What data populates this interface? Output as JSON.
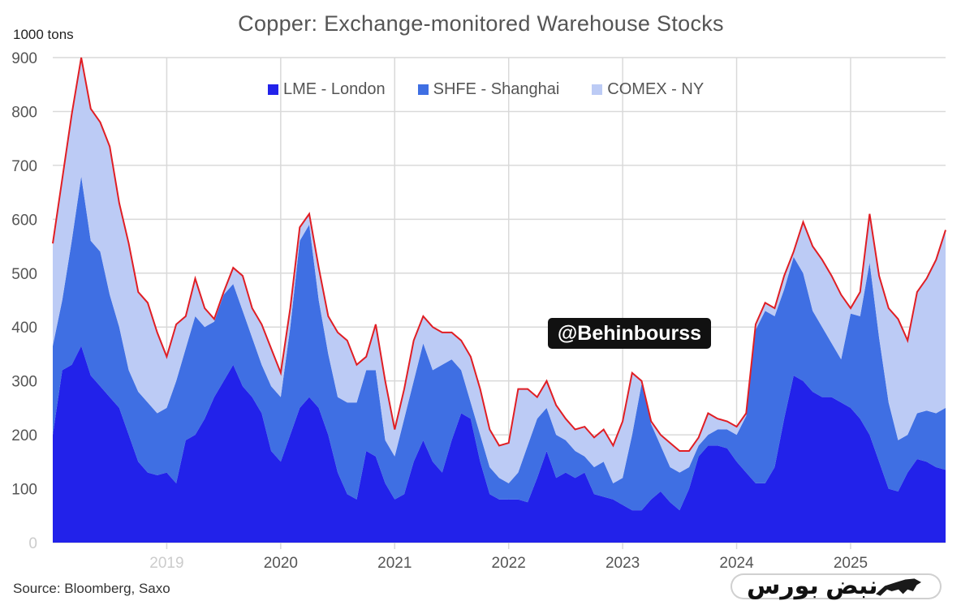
{
  "chart_data": {
    "type": "area",
    "stacked": true,
    "title": "Copper: Exchange-monitored Warehouse Stocks",
    "ylabel": "1000 tons",
    "xlabel": "",
    "ylim": [
      0,
      900
    ],
    "yticks": [
      "0",
      "100",
      "200",
      "300",
      "400",
      "500",
      "600",
      "700",
      "800",
      "900"
    ],
    "xticks": [
      "2019",
      "2020",
      "2021",
      "2022",
      "2023",
      "2024",
      "2025"
    ],
    "x_start": "2018-01",
    "x_step": "monthly",
    "grid": true,
    "legend_position": "top-center",
    "series": [
      {
        "name": "LME - London",
        "color": "#2222ea",
        "values": [
          200,
          320,
          330,
          365,
          310,
          290,
          270,
          250,
          200,
          150,
          130,
          125,
          130,
          110,
          190,
          200,
          230,
          270,
          300,
          330,
          290,
          270,
          240,
          170,
          150,
          200,
          250,
          270,
          250,
          200,
          130,
          90,
          80,
          170,
          160,
          110,
          80,
          90,
          150,
          190,
          150,
          130,
          190,
          240,
          230,
          150,
          90,
          80,
          80,
          80,
          75,
          120,
          170,
          120,
          130,
          120,
          130,
          90,
          85,
          80,
          70,
          60,
          60,
          80,
          95,
          75,
          60,
          100,
          160,
          180,
          180,
          175,
          150,
          130,
          110,
          110,
          140,
          230,
          310,
          300,
          280,
          270,
          270,
          260,
          250,
          230,
          200,
          150,
          100,
          95,
          130,
          155,
          150,
          140,
          135
        ]
      },
      {
        "name": "SHFE - Shanghai",
        "color": "#3f6fe3",
        "values": [
          165,
          130,
          230,
          315,
          250,
          250,
          190,
          150,
          120,
          130,
          130,
          115,
          120,
          190,
          170,
          220,
          170,
          140,
          160,
          150,
          140,
          110,
          90,
          120,
          120,
          200,
          310,
          320,
          200,
          150,
          140,
          170,
          180,
          150,
          160,
          80,
          80,
          140,
          150,
          180,
          170,
          200,
          150,
          80,
          30,
          50,
          50,
          40,
          30,
          50,
          105,
          110,
          80,
          80,
          60,
          50,
          30,
          50,
          65,
          30,
          50,
          140,
          235,
          140,
          85,
          65,
          70,
          40,
          20,
          20,
          30,
          35,
          50,
          105,
          285,
          320,
          280,
          240,
          220,
          200,
          150,
          130,
          100,
          80,
          175,
          190,
          320,
          230,
          160,
          95,
          70,
          85,
          95,
          100,
          115
        ]
      },
      {
        "name": "COMEX - NY",
        "color": "#bccbf5",
        "values": [
          190,
          225,
          235,
          220,
          245,
          240,
          275,
          230,
          235,
          185,
          185,
          150,
          95,
          105,
          60,
          70,
          35,
          5,
          5,
          30,
          65,
          55,
          75,
          70,
          45,
          35,
          25,
          20,
          60,
          70,
          120,
          115,
          70,
          25,
          85,
          110,
          50,
          55,
          75,
          50,
          80,
          60,
          50,
          55,
          85,
          85,
          70,
          60,
          75,
          155,
          105,
          40,
          50,
          55,
          40,
          40,
          55,
          55,
          60,
          70,
          105,
          115,
          5,
          5,
          20,
          45,
          40,
          30,
          15,
          40,
          20,
          15,
          15,
          5,
          10,
          15,
          15,
          25,
          10,
          95,
          120,
          125,
          125,
          120,
          10,
          45,
          90,
          115,
          175,
          225,
          175,
          225,
          245,
          285,
          330
        ]
      }
    ],
    "total_line_color": "#e01e24",
    "source": "Source: Bloomberg, Saxo"
  },
  "watermark": "@Behinbourss",
  "logo_text": "نبض بورس"
}
